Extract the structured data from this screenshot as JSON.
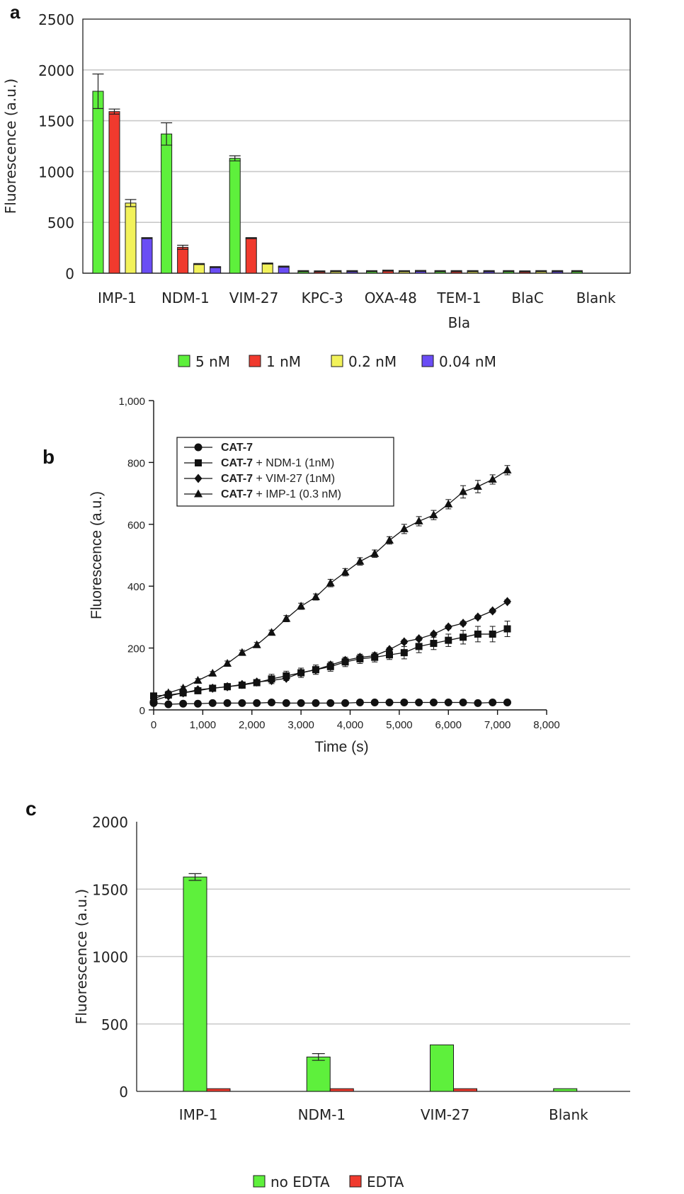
{
  "chart_data": [
    {
      "panel": "a",
      "type": "bar",
      "ylabel": "Fluorescence (a.u.)",
      "ylim": [
        0,
        2500
      ],
      "yticks": [
        "0",
        "500",
        "1000",
        "1500",
        "2000",
        "2500"
      ],
      "categories": [
        [
          "IMP-1"
        ],
        [
          "NDM-1"
        ],
        [
          "VIM-27"
        ],
        [
          "KPC-3"
        ],
        [
          "OXA-48"
        ],
        [
          "TEM-1",
          "Bla"
        ],
        [
          "BlaC"
        ],
        [
          "Blank"
        ]
      ],
      "grid": "horizontal",
      "legend_position": "bottom",
      "series": [
        {
          "name": "5 nM",
          "color": "#5ef03c",
          "values": [
            1790,
            1370,
            1130,
            20,
            20,
            20,
            20,
            20
          ],
          "errors": [
            170,
            110,
            25,
            5,
            5,
            5,
            5,
            5
          ]
        },
        {
          "name": "1 nM",
          "color": "#f03a2e",
          "values": [
            1590,
            255,
            345,
            18,
            25,
            20,
            18,
            0
          ],
          "errors": [
            25,
            20,
            5,
            5,
            5,
            5,
            5,
            0
          ]
        },
        {
          "name": "0.2 nM",
          "color": "#f2f25a",
          "values": [
            690,
            90,
            95,
            20,
            20,
            20,
            20,
            0
          ],
          "errors": [
            35,
            5,
            5,
            5,
            5,
            5,
            5,
            0
          ]
        },
        {
          "name": "0.04 nM",
          "color": "#6a4df5",
          "values": [
            345,
            60,
            65,
            20,
            22,
            20,
            20,
            0
          ],
          "errors": [
            5,
            5,
            5,
            5,
            5,
            5,
            5,
            0
          ]
        }
      ]
    },
    {
      "panel": "b",
      "type": "line",
      "xlabel": "Time (s)",
      "ylabel": "Fluorescence (a.u.)",
      "xlim": [
        0,
        8000
      ],
      "ylim": [
        0,
        1000
      ],
      "xticks": [
        "0",
        "1,000",
        "2,000",
        "3,000",
        "4,000",
        "5,000",
        "6,000",
        "7,000",
        "8,000"
      ],
      "yticks": [
        "0",
        "200",
        "400",
        "600",
        "800",
        "1,000"
      ],
      "legend_position": "top-left",
      "x": [
        0,
        300,
        600,
        900,
        1200,
        1500,
        1800,
        2100,
        2400,
        2700,
        3000,
        3300,
        3600,
        3900,
        4200,
        4500,
        4800,
        5100,
        5400,
        5700,
        6000,
        6300,
        6600,
        6900,
        7200
      ],
      "series": [
        {
          "name_bold": "CAT-7",
          "name_rest": "",
          "marker": "circle",
          "values": [
            22,
            18,
            20,
            20,
            22,
            22,
            22,
            22,
            24,
            22,
            22,
            22,
            22,
            22,
            24,
            24,
            24,
            24,
            24,
            24,
            24,
            24,
            22,
            24,
            24
          ],
          "errors": [
            4,
            4,
            4,
            4,
            4,
            4,
            4,
            4,
            4,
            4,
            4,
            4,
            4,
            4,
            4,
            4,
            4,
            4,
            4,
            4,
            4,
            4,
            4,
            4,
            4
          ]
        },
        {
          "name_bold": "CAT-7",
          "name_rest": " + NDM-1 (1nM)",
          "marker": "square",
          "values": [
            45,
            48,
            55,
            62,
            70,
            75,
            80,
            88,
            100,
            110,
            120,
            130,
            140,
            155,
            165,
            170,
            178,
            185,
            205,
            215,
            225,
            235,
            245,
            245,
            262
          ],
          "errors": [
            5,
            8,
            8,
            8,
            8,
            10,
            10,
            10,
            15,
            15,
            15,
            15,
            15,
            15,
            15,
            15,
            15,
            20,
            20,
            20,
            20,
            22,
            25,
            25,
            25
          ]
        },
        {
          "name_bold": "CAT-7",
          "name_rest": " + VIM-27 (1nM)",
          "marker": "diamond",
          "values": [
            30,
            45,
            55,
            65,
            70,
            75,
            82,
            90,
            95,
            102,
            120,
            130,
            145,
            160,
            170,
            175,
            195,
            220,
            230,
            245,
            268,
            280,
            300,
            320,
            350
          ],
          "errors": [
            4,
            4,
            4,
            4,
            4,
            4,
            4,
            4,
            4,
            4,
            6,
            6,
            6,
            6,
            6,
            6,
            6,
            6,
            6,
            6,
            6,
            6,
            6,
            6,
            6
          ]
        },
        {
          "name_bold": "CAT-7",
          "name_rest": " + IMP-1 (0.3 nM)",
          "marker": "triangle",
          "values": [
            35,
            55,
            70,
            95,
            118,
            150,
            185,
            210,
            250,
            295,
            335,
            365,
            410,
            445,
            480,
            505,
            548,
            585,
            610,
            630,
            665,
            705,
            722,
            745,
            775
          ],
          "errors": [
            4,
            6,
            6,
            6,
            6,
            8,
            8,
            8,
            8,
            10,
            10,
            10,
            12,
            12,
            12,
            12,
            12,
            15,
            15,
            15,
            15,
            20,
            20,
            15,
            15
          ]
        }
      ]
    },
    {
      "panel": "c",
      "type": "bar",
      "ylabel": "Fluorescence (a.u.)",
      "ylim": [
        0,
        2000
      ],
      "yticks": [
        "0",
        "500",
        "1000",
        "1500",
        "2000"
      ],
      "categories": [
        [
          "IMP-1"
        ],
        [
          "NDM-1"
        ],
        [
          "VIM-27"
        ],
        [
          "Blank"
        ]
      ],
      "grid": "horizontal",
      "legend_position": "bottom",
      "series": [
        {
          "name": "no EDTA",
          "color": "#5ef03c",
          "values": [
            1590,
            255,
            345,
            20
          ],
          "errors": [
            25,
            25,
            0,
            0
          ]
        },
        {
          "name": "EDTA",
          "color": "#f03a2e",
          "values": [
            20,
            20,
            20,
            0
          ],
          "errors": [
            0,
            0,
            0,
            0
          ]
        }
      ]
    }
  ],
  "panel_labels": {
    "a": "a",
    "b": "b",
    "c": "c"
  }
}
